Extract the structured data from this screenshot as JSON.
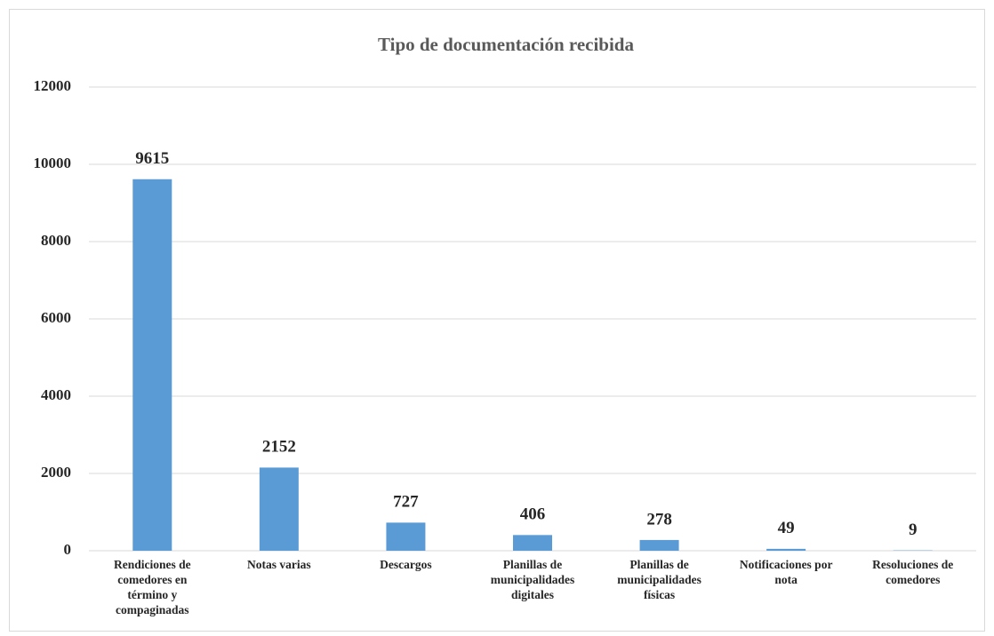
{
  "chart_data": {
    "type": "bar",
    "title": "Tipo de documentación recibida",
    "categories": [
      "Rendiciones de comedores en término y compaginadas",
      "Notas varias",
      "Descargos",
      "Planillas de municipalidades digitales",
      "Planillas de municipalidades físicas",
      "Notificaciones por nota",
      "Resoluciones de comedores"
    ],
    "values": [
      9615,
      2152,
      727,
      406,
      278,
      49,
      9
    ],
    "color": "#5b9bd5",
    "ylim": [
      0,
      12000
    ],
    "yticks": [
      0,
      2000,
      4000,
      6000,
      8000,
      10000,
      12000
    ],
    "grid": true
  }
}
